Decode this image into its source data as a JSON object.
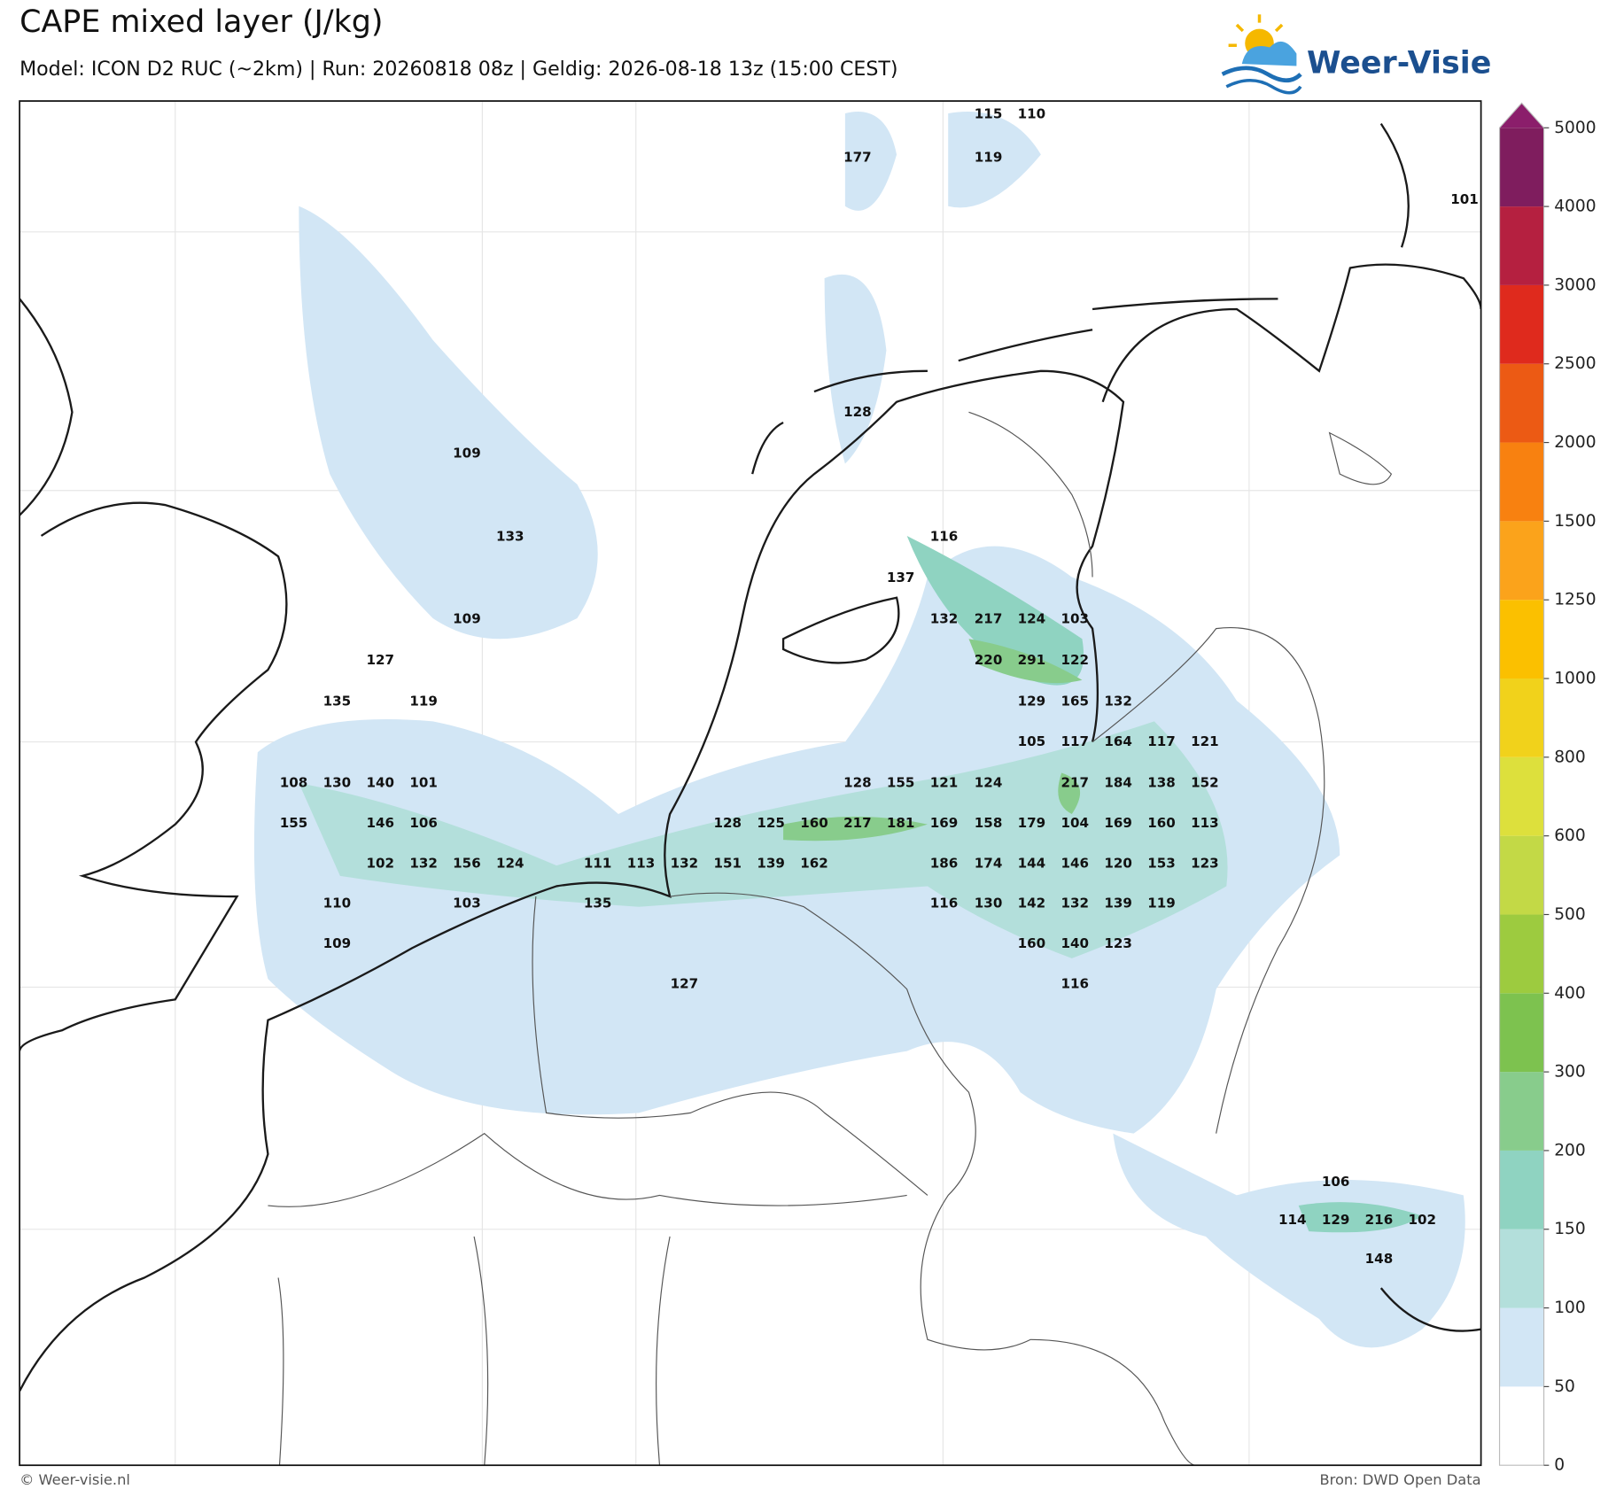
{
  "header": {
    "title": "CAPE mixed layer (J/kg)",
    "subtitle": "Model: ICON D2 RUC (~2km)  |  Run: 20260818 08z  |  Geldig: 2026-08-18 13z (15:00 CEST)",
    "logo": "Weer-Visie"
  },
  "colorbar": {
    "levels": [
      0,
      50,
      100,
      150,
      200,
      300,
      400,
      500,
      600,
      800,
      1000,
      1250,
      1500,
      2000,
      2500,
      3000,
      4000,
      5000
    ],
    "colors": [
      "#ffffff",
      "#d2e6f5",
      "#b3dfdb",
      "#8fd3c1",
      "#88cc8c",
      "#7dc24f",
      "#9dcb3f",
      "#c3d946",
      "#dde03c",
      "#f1d21b",
      "#fbc000",
      "#fba31b",
      "#f88110",
      "#ec5a14",
      "#df2a1d",
      "#b52040",
      "#7f1d5e",
      "#8b1e6b"
    ]
  },
  "labels": [
    115,
    110,
    177,
    119,
    101,
    128,
    109,
    133,
    116,
    137,
    109,
    132,
    217,
    124,
    103,
    127,
    220,
    291,
    122,
    135,
    119,
    129,
    165,
    132,
    105,
    117,
    164,
    117,
    121,
    108,
    130,
    140,
    101,
    128,
    155,
    121,
    124,
    217,
    184,
    138,
    152,
    155,
    146,
    106,
    128,
    125,
    160,
    217,
    181,
    169,
    158,
    179,
    104,
    169,
    160,
    113,
    102,
    132,
    156,
    124,
    111,
    113,
    132,
    151,
    139,
    162,
    186,
    174,
    144,
    146,
    120,
    153,
    123,
    110,
    103,
    135,
    116,
    130,
    142,
    132,
    139,
    119,
    109,
    160,
    140,
    123,
    127,
    116,
    106,
    114,
    129,
    216,
    102,
    148
  ],
  "footer": {
    "left": "© Weer-visie.nl",
    "right": "Bron: DWD Open Data"
  }
}
